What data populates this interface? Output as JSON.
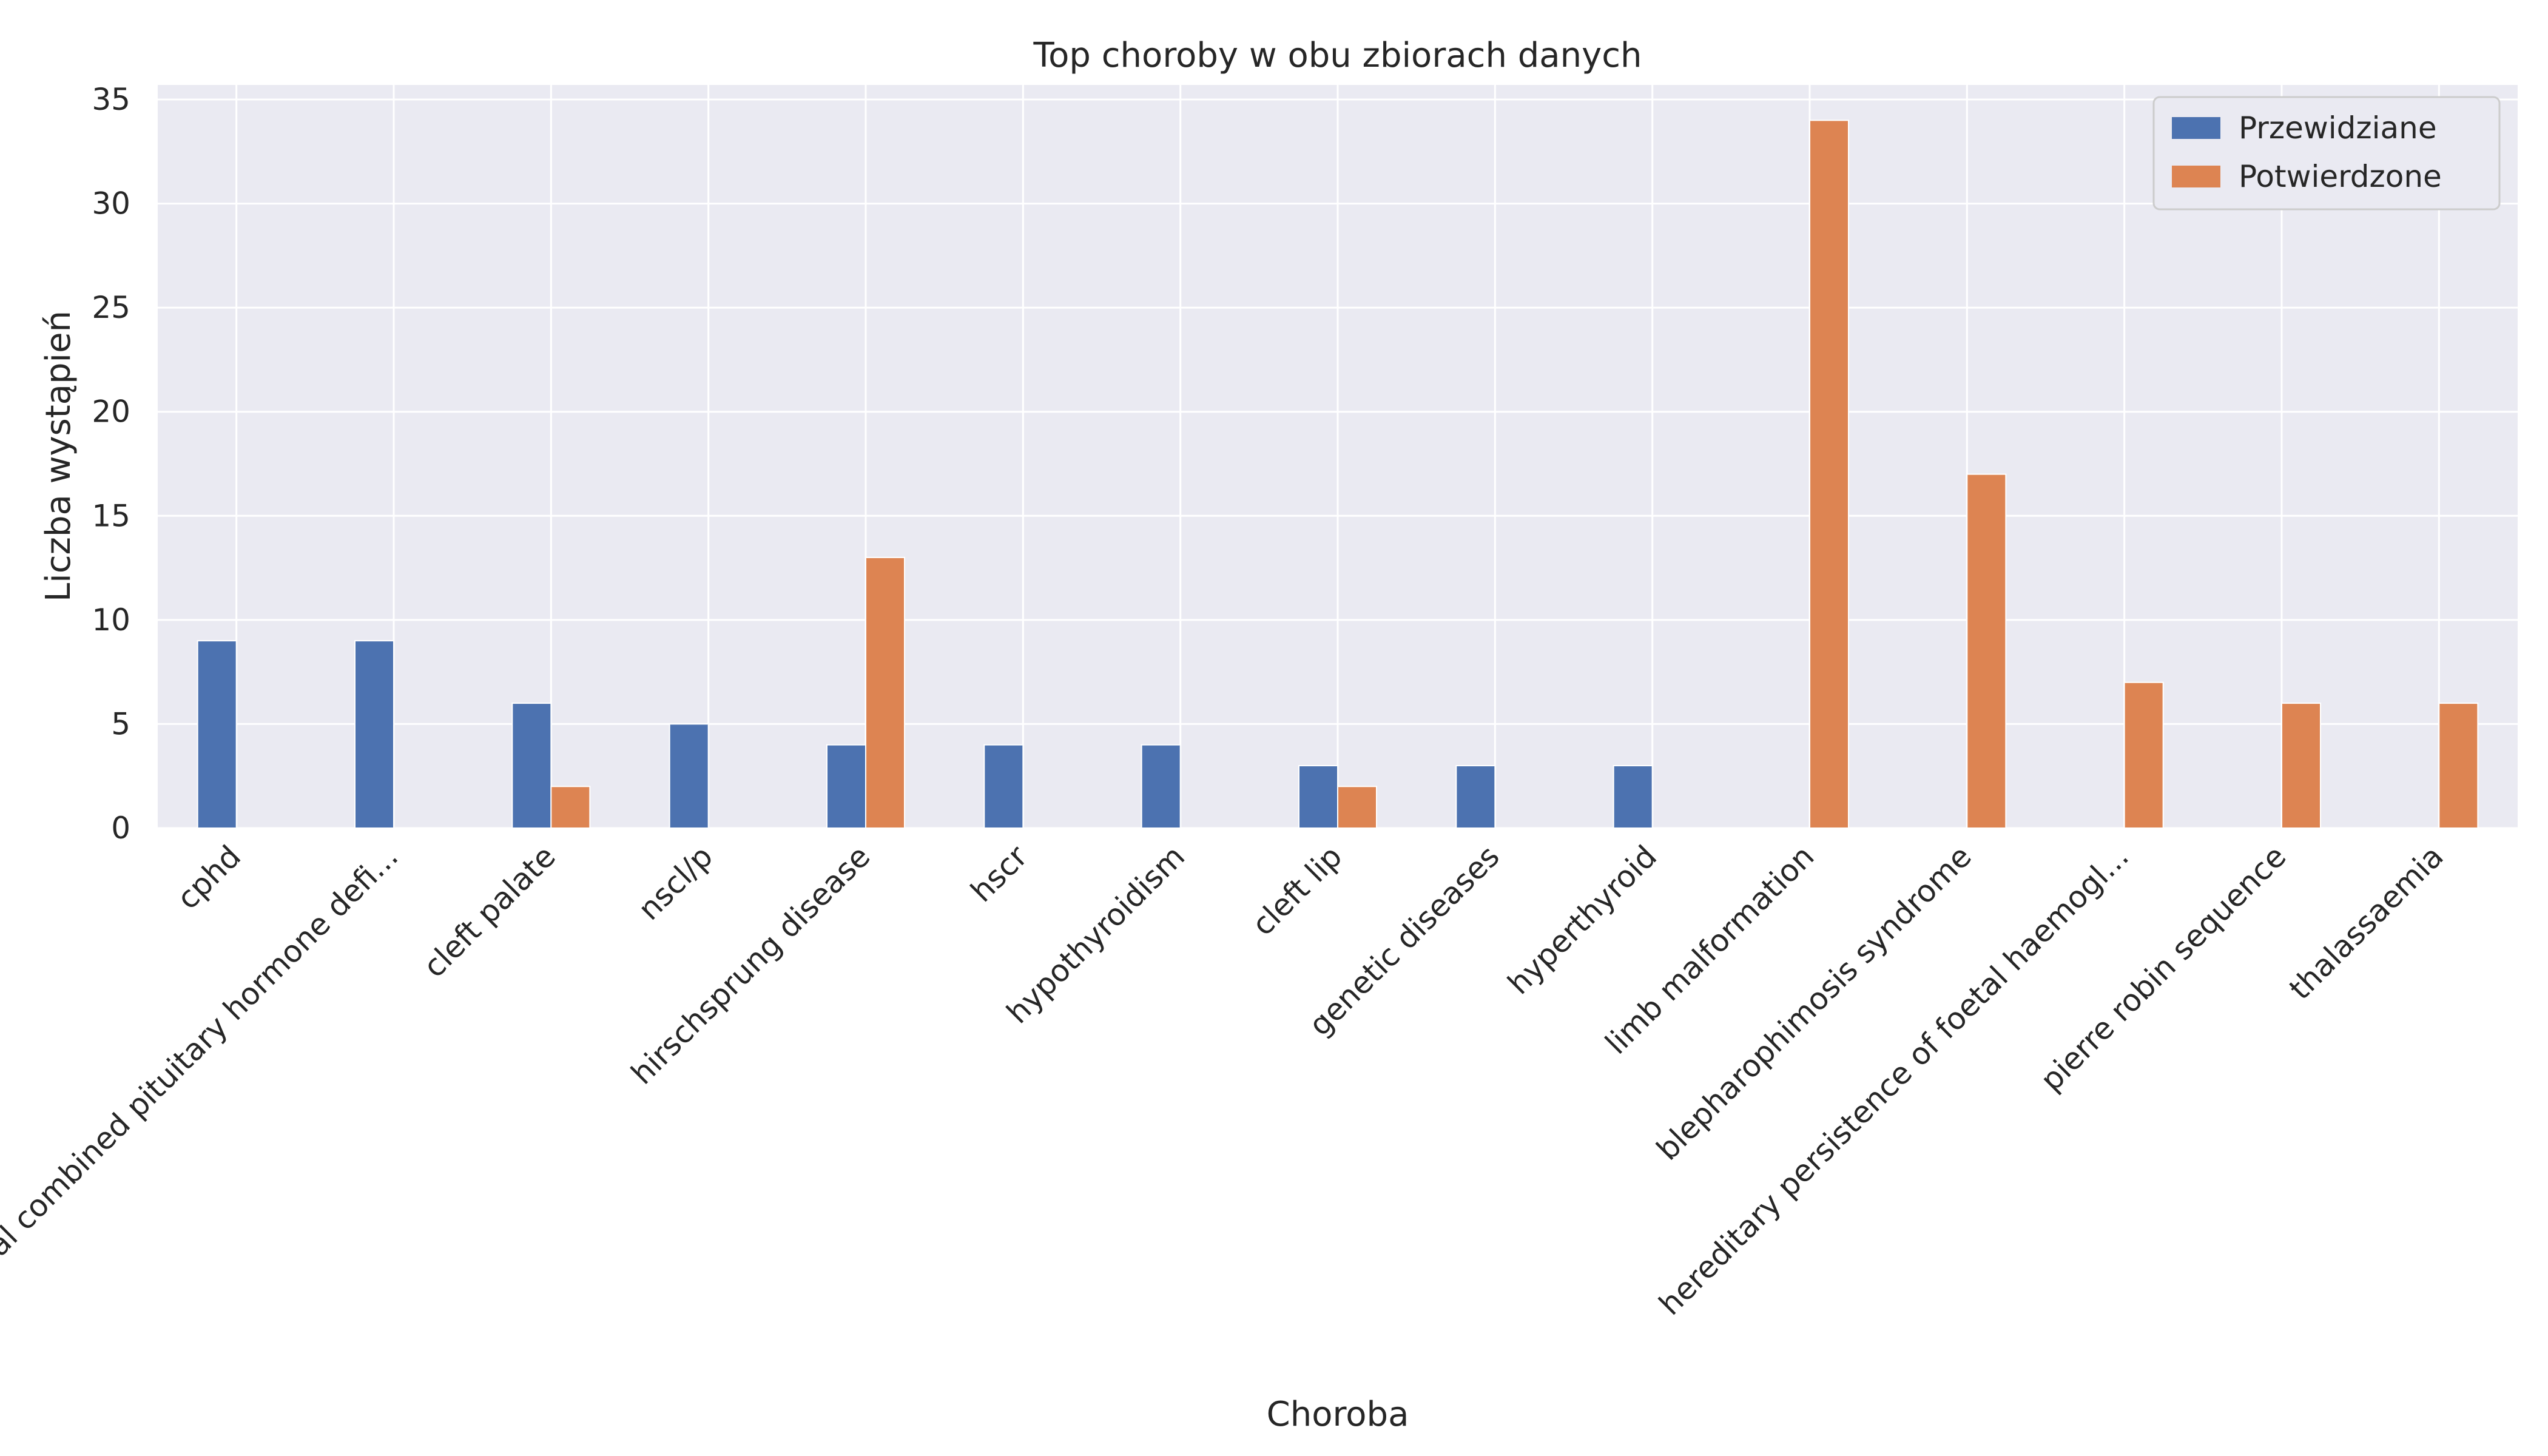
{
  "chart_data": {
    "type": "bar",
    "title": "Top choroby w obu zbiorach danych",
    "xlabel": "Choroba",
    "ylabel": "Liczba wystąpień",
    "ylim": [
      0,
      35.7
    ],
    "yticks": [
      0,
      5,
      10,
      15,
      20,
      25,
      30,
      35
    ],
    "grid": true,
    "legend_position": "top-right",
    "categories": [
      "cphd",
      "familial combined pituitary hormone defi...",
      "cleft palate",
      "nscl/p",
      "hirschsprung disease",
      "hscr",
      "hypothyroidism",
      "cleft lip",
      "genetic diseases",
      "hyperthyroid",
      "limb malformation",
      "blepharophimosis syndrome",
      "hereditary persistence of foetal haemogl...",
      "pierre robin sequence",
      "thalassaemia"
    ],
    "series": [
      {
        "name": "Przewidziane",
        "color": "#4c72b0",
        "values": [
          9,
          9,
          6,
          5,
          4,
          4,
          4,
          3,
          3,
          3,
          0,
          0,
          0,
          0,
          0
        ]
      },
      {
        "name": "Potwierdzone",
        "color": "#dd8452",
        "values": [
          0,
          0,
          2,
          0,
          13,
          0,
          0,
          2,
          0,
          0,
          34,
          17,
          7,
          6,
          6
        ]
      }
    ],
    "colors": {
      "plot_background": "#eaeaf2",
      "grid": "#ffffff",
      "text": "#262626"
    }
  }
}
